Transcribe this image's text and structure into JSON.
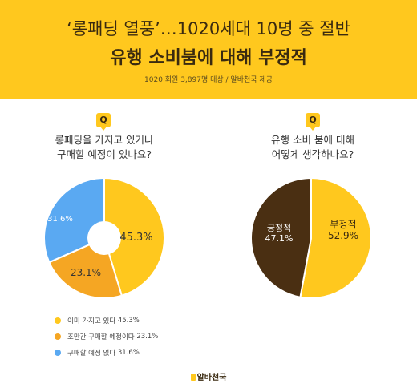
{
  "header": {
    "title_line1": "‘롱패딩 열풍’…1020세대 10명 중 절반",
    "title_line2": "유행 소비붐에 대해 부정적",
    "subtitle": "1020 회원 3,897명 대상 / 알바천국 제공"
  },
  "badge_label": "Q",
  "left_question": [
    "롱패딩을 가지고 있거나",
    "구매할 예정이 있나요?"
  ],
  "right_question": [
    "유행 소비 붐에 대해",
    "어떻게 생각하나요?"
  ],
  "legend": [
    {
      "label": "이미 가지고 있다",
      "value": "45.3%",
      "color": "#ffc81e"
    },
    {
      "label": "조만간 구매할 예정이다",
      "value": "23.1%",
      "color": "#f5a623"
    },
    {
      "label": "구매할 예정 없다",
      "value": "31.6%",
      "color": "#5aa9f2"
    }
  ],
  "brand": "알바천국",
  "colors": {
    "header_bg": "#ffc81e",
    "dark_text": "#3a2a10",
    "brown": "#4a2f12"
  },
  "chart_data": [
    {
      "type": "pie",
      "title": "롱패딩을 가지고 있거나 구매할 예정이 있나요?",
      "categories": [
        "이미 가지고 있다",
        "조만간 구매할 예정이다",
        "구매할 예정 없다"
      ],
      "values": [
        45.3,
        23.1,
        31.6
      ],
      "labels": [
        "45.3%",
        "23.1%",
        "31.6%"
      ],
      "colors": [
        "#ffc81e",
        "#f5a623",
        "#5aa9f2"
      ],
      "legend": "bottom-left"
    },
    {
      "type": "pie",
      "title": "유행 소비 붐에 대해 어떻게 생각하나요?",
      "categories": [
        "부정적",
        "긍정적"
      ],
      "values": [
        52.9,
        47.1
      ],
      "labels": [
        "부정적\n52.9%",
        "긍정적\n47.1%"
      ],
      "colors": [
        "#ffc81e",
        "#4a2f12"
      ]
    }
  ]
}
